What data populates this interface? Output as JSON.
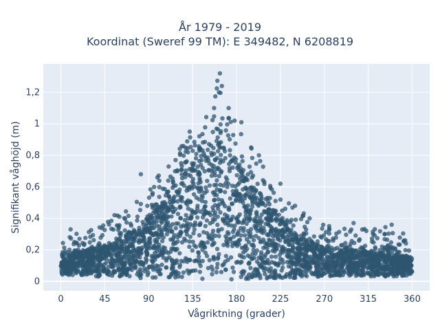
{
  "chart_data": {
    "type": "scatter",
    "title_lines": [
      "År 1979 - 2019",
      "Koordinat (Sweref 99 TM): E 349482, N 6208819"
    ],
    "xlabel": "Vågriktning (grader)",
    "ylabel": "Signifikant våghöjd (m)",
    "xlim": [
      -18,
      378
    ],
    "ylim": [
      -0.06,
      1.38
    ],
    "x_ticks": [
      0,
      45,
      90,
      135,
      180,
      225,
      270,
      315,
      360
    ],
    "x_tick_labels": [
      "0",
      "45",
      "90",
      "135",
      "180",
      "225",
      "270",
      "315",
      "360"
    ],
    "y_ticks": [
      0,
      0.2,
      0.4,
      0.6,
      0.8,
      1.0,
      1.2
    ],
    "y_tick_labels": [
      "0",
      "0,2",
      "0,4",
      "0,6",
      "0,8",
      "1",
      "1,2"
    ],
    "grid": true,
    "background_color": "#e5ecf6",
    "marker_color": "#2f5570",
    "marker_opacity": 0.75,
    "envelope": {
      "x": [
        0,
        20,
        40,
        60,
        80,
        100,
        120,
        140,
        155,
        160,
        170,
        180,
        200,
        220,
        240,
        260,
        280,
        300,
        320,
        340,
        360
      ],
      "core_max": [
        0.15,
        0.19,
        0.22,
        0.27,
        0.34,
        0.47,
        0.64,
        0.82,
        0.9,
        0.92,
        0.87,
        0.75,
        0.55,
        0.43,
        0.3,
        0.24,
        0.2,
        0.2,
        0.19,
        0.17,
        0.15
      ],
      "outer_max": [
        0.27,
        0.31,
        0.36,
        0.43,
        0.54,
        0.68,
        0.83,
        0.98,
        1.1,
        1.32,
        1.08,
        1.02,
        0.8,
        0.64,
        0.48,
        0.38,
        0.35,
        0.33,
        0.36,
        0.34,
        0.28
      ],
      "min": [
        0.04,
        0.04,
        0.03,
        0.03,
        0.02,
        0.02,
        0.02,
        0.01,
        0.01,
        0.01,
        0.01,
        0.01,
        0.01,
        0.02,
        0.02,
        0.03,
        0.03,
        0.03,
        0.03,
        0.03,
        0.04
      ]
    },
    "highlight_points": [
      {
        "x": 163,
        "y": 1.32
      },
      {
        "x": 165,
        "y": 1.24
      },
      {
        "x": 162,
        "y": 1.2
      },
      {
        "x": 157,
        "y": 1.1
      },
      {
        "x": 178,
        "y": 1.02
      },
      {
        "x": 172,
        "y": 1.1
      },
      {
        "x": 185,
        "y": 1.01
      },
      {
        "x": 132,
        "y": 0.95
      },
      {
        "x": 203,
        "y": 0.8
      },
      {
        "x": 225,
        "y": 0.62
      },
      {
        "x": 240,
        "y": 0.48
      },
      {
        "x": 255,
        "y": 0.4
      },
      {
        "x": 300,
        "y": 0.37
      },
      {
        "x": 339,
        "y": 0.36
      },
      {
        "x": 82,
        "y": 0.68
      },
      {
        "x": 55,
        "y": 0.42
      },
      {
        "x": 10,
        "y": 0.33
      }
    ]
  }
}
